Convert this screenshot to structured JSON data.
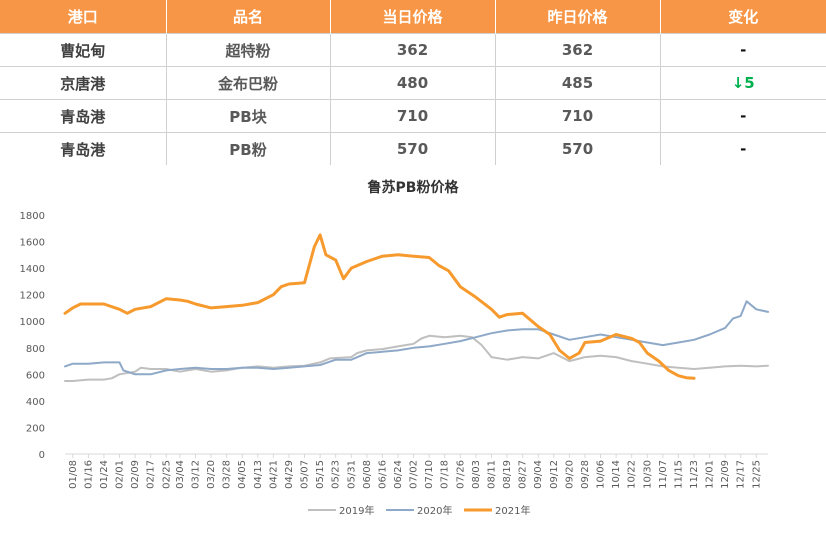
{
  "table": {
    "headers": [
      "港口",
      "品名",
      "当日价格",
      "昨日价格",
      "变化"
    ],
    "rows": [
      {
        "port": "曹妃甸",
        "product": "超特粉",
        "today": "362",
        "yesterday": "362",
        "change": "-"
      },
      {
        "port": "京唐港",
        "product": "金布巴粉",
        "today": "480",
        "yesterday": "485",
        "change": "↓5"
      },
      {
        "port": "青岛港",
        "product": "PB块",
        "today": "710",
        "yesterday": "710",
        "change": "-"
      },
      {
        "port": "青岛港",
        "product": "PB粉",
        "today": "570",
        "yesterday": "570",
        "change": "-"
      }
    ]
  },
  "colors": {
    "header_bg": "#F79646",
    "change_down": "#00B050",
    "series_2019": "#BFBFBF",
    "series_2020": "#8EA9C8",
    "series_2021": "#F79A2E"
  },
  "chart_data": {
    "type": "line",
    "title": "鲁苏PB粉价格",
    "ylim": [
      0,
      1800
    ],
    "yticks": [
      0,
      200,
      400,
      600,
      800,
      1000,
      1200,
      1400,
      1600,
      1800
    ],
    "x_tick_labels": [
      "01/08",
      "01/16",
      "01/24",
      "02/01",
      "02/09",
      "02/17",
      "02/25",
      "03/04",
      "03/12",
      "03/20",
      "03/28",
      "04/05",
      "04/13",
      "04/21",
      "04/29",
      "05/07",
      "05/15",
      "05/23",
      "05/31",
      "06/08",
      "06/16",
      "06/24",
      "07/02",
      "07/10",
      "07/18",
      "07/26",
      "08/03",
      "08/11",
      "08/19",
      "08/27",
      "09/04",
      "09/12",
      "09/20",
      "09/28",
      "10/06",
      "10/14",
      "10/22",
      "10/30",
      "11/07",
      "11/15",
      "11/23",
      "12/01",
      "12/09",
      "12/17",
      "12/25"
    ],
    "x_start": "01/04",
    "x_end": "12/31",
    "grid": false,
    "legend": "bottom",
    "series": [
      {
        "name": "2019年",
        "points": [
          [
            "01/04",
            550
          ],
          [
            "01/08",
            550
          ],
          [
            "01/16",
            560
          ],
          [
            "01/24",
            560
          ],
          [
            "01/28",
            570
          ],
          [
            "02/01",
            600
          ],
          [
            "02/09",
            620
          ],
          [
            "02/12",
            650
          ],
          [
            "02/17",
            640
          ],
          [
            "02/25",
            640
          ],
          [
            "03/04",
            620
          ],
          [
            "03/12",
            640
          ],
          [
            "03/20",
            620
          ],
          [
            "03/28",
            630
          ],
          [
            "04/05",
            650
          ],
          [
            "04/13",
            660
          ],
          [
            "04/21",
            650
          ],
          [
            "04/29",
            660
          ],
          [
            "05/07",
            665
          ],
          [
            "05/15",
            690
          ],
          [
            "05/20",
            720
          ],
          [
            "05/31",
            730
          ],
          [
            "06/03",
            760
          ],
          [
            "06/08",
            780
          ],
          [
            "06/16",
            790
          ],
          [
            "06/24",
            810
          ],
          [
            "07/02",
            830
          ],
          [
            "07/06",
            870
          ],
          [
            "07/10",
            890
          ],
          [
            "07/18",
            880
          ],
          [
            "07/26",
            890
          ],
          [
            "08/01",
            880
          ],
          [
            "08/06",
            820
          ],
          [
            "08/11",
            730
          ],
          [
            "08/19",
            710
          ],
          [
            "08/27",
            730
          ],
          [
            "09/04",
            720
          ],
          [
            "09/12",
            760
          ],
          [
            "09/20",
            700
          ],
          [
            "09/28",
            730
          ],
          [
            "10/06",
            740
          ],
          [
            "10/14",
            730
          ],
          [
            "10/22",
            700
          ],
          [
            "10/30",
            680
          ],
          [
            "11/07",
            660
          ],
          [
            "11/15",
            650
          ],
          [
            "11/23",
            640
          ],
          [
            "12/01",
            650
          ],
          [
            "12/09",
            660
          ],
          [
            "12/17",
            665
          ],
          [
            "12/25",
            660
          ],
          [
            "12/31",
            665
          ]
        ]
      },
      {
        "name": "2020年",
        "points": [
          [
            "01/04",
            660
          ],
          [
            "01/08",
            680
          ],
          [
            "01/16",
            680
          ],
          [
            "01/24",
            690
          ],
          [
            "02/01",
            690
          ],
          [
            "02/03",
            630
          ],
          [
            "02/09",
            600
          ],
          [
            "02/17",
            600
          ],
          [
            "02/25",
            630
          ],
          [
            "03/04",
            640
          ],
          [
            "03/12",
            650
          ],
          [
            "03/20",
            640
          ],
          [
            "03/28",
            640
          ],
          [
            "04/05",
            650
          ],
          [
            "04/13",
            650
          ],
          [
            "04/21",
            640
          ],
          [
            "04/29",
            650
          ],
          [
            "05/07",
            660
          ],
          [
            "05/15",
            670
          ],
          [
            "05/23",
            710
          ],
          [
            "05/31",
            710
          ],
          [
            "06/08",
            760
          ],
          [
            "06/16",
            770
          ],
          [
            "06/24",
            780
          ],
          [
            "07/02",
            800
          ],
          [
            "07/10",
            810
          ],
          [
            "07/18",
            830
          ],
          [
            "07/26",
            850
          ],
          [
            "08/03",
            880
          ],
          [
            "08/11",
            910
          ],
          [
            "08/19",
            930
          ],
          [
            "08/27",
            940
          ],
          [
            "09/04",
            940
          ],
          [
            "09/12",
            900
          ],
          [
            "09/20",
            860
          ],
          [
            "09/28",
            880
          ],
          [
            "10/06",
            900
          ],
          [
            "10/14",
            880
          ],
          [
            "10/22",
            860
          ],
          [
            "10/30",
            840
          ],
          [
            "11/07",
            820
          ],
          [
            "11/15",
            840
          ],
          [
            "11/23",
            860
          ],
          [
            "12/01",
            900
          ],
          [
            "12/09",
            950
          ],
          [
            "12/13",
            1020
          ],
          [
            "12/17",
            1040
          ],
          [
            "12/20",
            1150
          ],
          [
            "12/25",
            1090
          ],
          [
            "12/31",
            1070
          ]
        ]
      },
      {
        "name": "2021年",
        "points": [
          [
            "01/04",
            1060
          ],
          [
            "01/08",
            1100
          ],
          [
            "01/12",
            1130
          ],
          [
            "01/16",
            1130
          ],
          [
            "01/24",
            1130
          ],
          [
            "02/01",
            1090
          ],
          [
            "02/05",
            1060
          ],
          [
            "02/09",
            1090
          ],
          [
            "02/17",
            1110
          ],
          [
            "02/25",
            1170
          ],
          [
            "03/04",
            1160
          ],
          [
            "03/08",
            1150
          ],
          [
            "03/12",
            1130
          ],
          [
            "03/20",
            1100
          ],
          [
            "03/28",
            1110
          ],
          [
            "04/05",
            1120
          ],
          [
            "04/13",
            1140
          ],
          [
            "04/21",
            1200
          ],
          [
            "04/25",
            1260
          ],
          [
            "04/29",
            1280
          ],
          [
            "05/07",
            1290
          ],
          [
            "05/12",
            1560
          ],
          [
            "05/15",
            1650
          ],
          [
            "05/18",
            1500
          ],
          [
            "05/23",
            1460
          ],
          [
            "05/27",
            1320
          ],
          [
            "05/31",
            1400
          ],
          [
            "06/08",
            1450
          ],
          [
            "06/16",
            1490
          ],
          [
            "06/24",
            1500
          ],
          [
            "07/02",
            1490
          ],
          [
            "07/10",
            1480
          ],
          [
            "07/15",
            1420
          ],
          [
            "07/20",
            1380
          ],
          [
            "07/26",
            1260
          ],
          [
            "08/03",
            1180
          ],
          [
            "08/11",
            1090
          ],
          [
            "08/15",
            1030
          ],
          [
            "08/19",
            1050
          ],
          [
            "08/27",
            1060
          ],
          [
            "09/04",
            960
          ],
          [
            "09/10",
            900
          ],
          [
            "09/15",
            780
          ],
          [
            "09/20",
            720
          ],
          [
            "09/25",
            760
          ],
          [
            "09/28",
            840
          ],
          [
            "10/06",
            850
          ],
          [
            "10/14",
            900
          ],
          [
            "10/22",
            870
          ],
          [
            "10/26",
            840
          ],
          [
            "10/30",
            760
          ],
          [
            "11/05",
            700
          ],
          [
            "11/10",
            630
          ],
          [
            "11/15",
            590
          ],
          [
            "11/19",
            575
          ],
          [
            "11/23",
            570
          ]
        ]
      }
    ]
  }
}
